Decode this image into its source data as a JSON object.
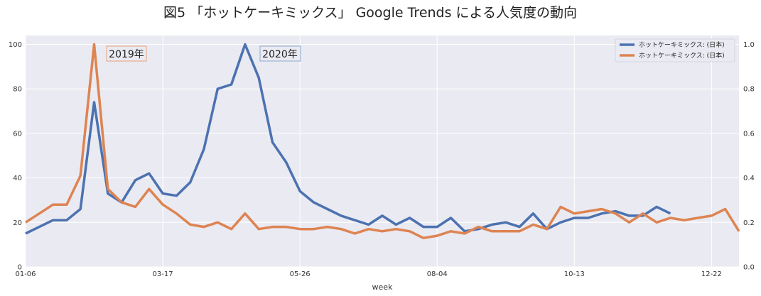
{
  "chart_data": {
    "type": "line",
    "title": "図5 「ホットケーキミックス」 Google Trends による人気度の動向",
    "xlabel": "week",
    "x_ticks": [
      "01-06",
      "03-17",
      "05-26",
      "08-04",
      "10-13",
      "12-22"
    ],
    "y_left_ticks": [
      "0",
      "20",
      "40",
      "60",
      "80",
      "100"
    ],
    "y_right_ticks": [
      "0.0",
      "0.2",
      "0.4",
      "0.6",
      "0.8",
      "1.0"
    ],
    "ylim_left": [
      0,
      104
    ],
    "ylim_right": [
      0,
      1.04
    ],
    "grid": true,
    "legend_position": "top-right",
    "series": [
      {
        "name": "ホットケーキミックス: (日本)",
        "color": "#4c72b0",
        "annotation": "2020年",
        "values": [
          15,
          18,
          21,
          21,
          26,
          74,
          33,
          29,
          39,
          42,
          33,
          32,
          38,
          53,
          80,
          82,
          100,
          85,
          56,
          47,
          34,
          29,
          26,
          23,
          21,
          19,
          23,
          19,
          22,
          18,
          18,
          22,
          16,
          17,
          19,
          20,
          18,
          24,
          17,
          20,
          22,
          22,
          24,
          25,
          23,
          23,
          27,
          24
        ]
      },
      {
        "name": "ホットケーキミックス: (日本)",
        "color": "#dd8452",
        "annotation": "2019年",
        "values": [
          20,
          24,
          28,
          28,
          41,
          100,
          35,
          29,
          27,
          35,
          28,
          24,
          19,
          18,
          20,
          17,
          24,
          17,
          18,
          18,
          17,
          17,
          18,
          17,
          15,
          17,
          16,
          17,
          16,
          13,
          14,
          16,
          15,
          18,
          16,
          16,
          16,
          19,
          17,
          27,
          24,
          25,
          26,
          24,
          20,
          24,
          20,
          22,
          21,
          22,
          23,
          26,
          16
        ]
      }
    ]
  }
}
